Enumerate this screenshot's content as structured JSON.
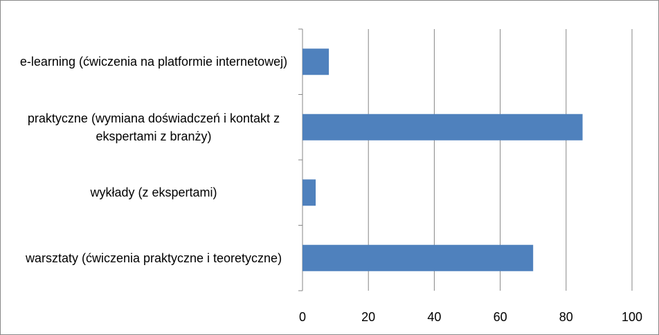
{
  "chart_data": {
    "type": "bar",
    "orientation": "horizontal",
    "categories": [
      "e-learning (ćwiczenia na platformie internetowej)",
      "praktyczne (wymiana doświadczeń i kontakt z ekspertami z branży)",
      "wykłady (z ekspertami)",
      "warsztaty (ćwiczenia praktyczne i teoretyczne)"
    ],
    "values": [
      8,
      85,
      4,
      70
    ],
    "color": "#4f81bd",
    "xlim": [
      0,
      100
    ],
    "xticks": [
      0,
      20,
      40,
      60,
      80,
      100
    ],
    "grid": true
  }
}
